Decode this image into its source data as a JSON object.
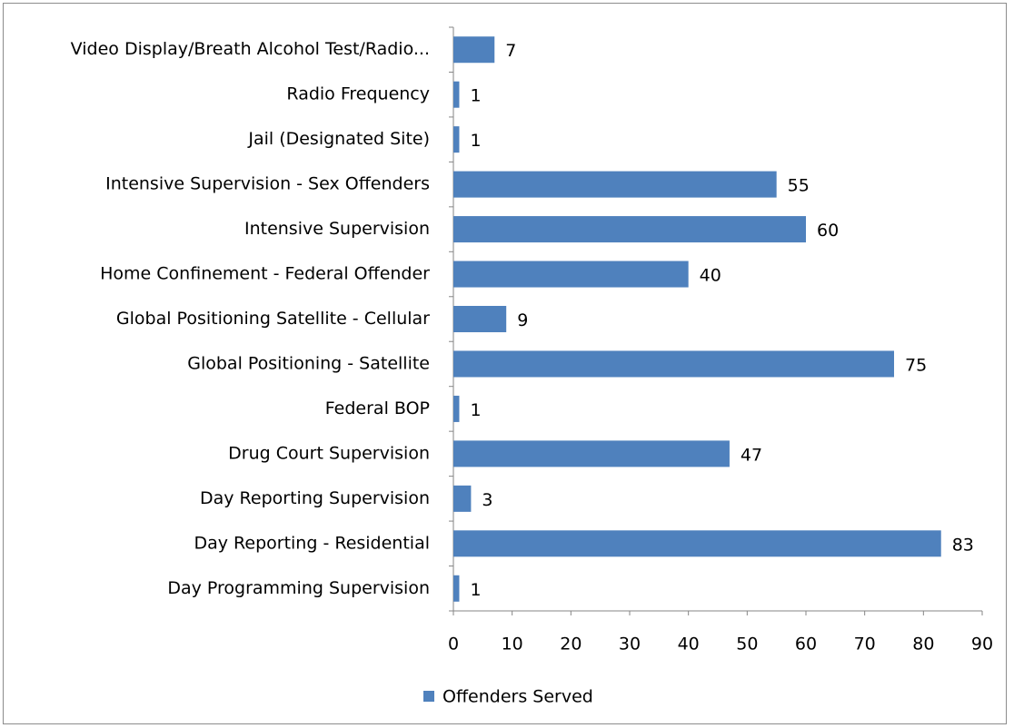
{
  "chart_data": {
    "type": "bar",
    "orientation": "horizontal",
    "categories": [
      "Video Display/Breath Alcohol Test/Radio...",
      "Radio Frequency",
      "Jail (Designated Site)",
      "Intensive Supervision - Sex Offenders",
      "Intensive Supervision",
      "Home Confinement - Federal Offender",
      "Global Positioning Satellite - Cellular",
      "Global Positioning - Satellite",
      "Federal BOP",
      "Drug Court Supervision",
      "Day Reporting Supervision",
      "Day Reporting - Residential",
      "Day Programming Supervision"
    ],
    "series": [
      {
        "name": "Offenders Served",
        "color": "#4f81bd",
        "values": [
          7,
          1,
          1,
          55,
          60,
          40,
          9,
          75,
          1,
          47,
          3,
          83,
          1
        ]
      }
    ],
    "xlim": [
      0,
      90
    ],
    "xticks": [
      0,
      10,
      20,
      30,
      40,
      50,
      60,
      70,
      80,
      90
    ],
    "legend": "bottom",
    "grid": false
  }
}
